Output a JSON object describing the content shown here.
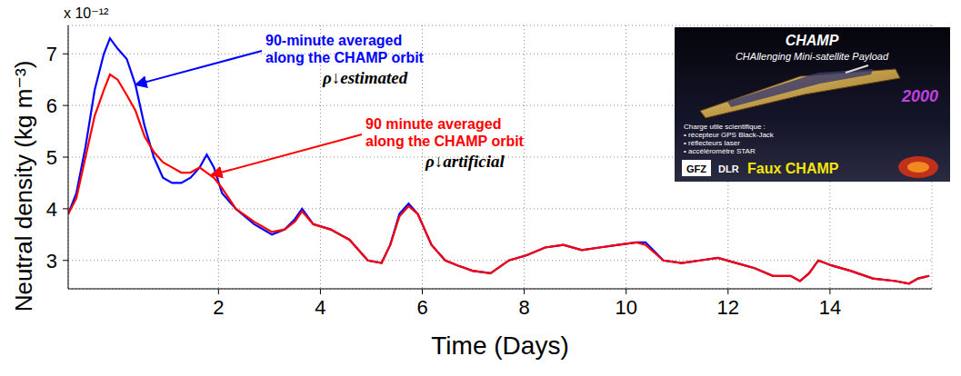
{
  "chart_data": {
    "type": "line",
    "xlabel": "Time (Days)",
    "ylabel": "Neutral density (kg m⁻³)",
    "y_multiplier": "x 10⁻¹²",
    "x": [
      -0.95,
      -0.79,
      -0.61,
      -0.43,
      -0.25,
      -0.13,
      0.02,
      0.2,
      0.37,
      0.55,
      0.73,
      0.91,
      1.09,
      1.27,
      1.45,
      1.63,
      1.77,
      1.91,
      2.07,
      2.34,
      2.7,
      3.05,
      3.3,
      3.5,
      3.64,
      3.86,
      4.2,
      4.57,
      4.93,
      5.2,
      5.37,
      5.55,
      5.73,
      5.91,
      6.18,
      6.45,
      6.7,
      6.98,
      7.34,
      7.7,
      8.05,
      8.41,
      8.77,
      9.13,
      9.48,
      9.84,
      10.2,
      10.38,
      10.73,
      11.09,
      11.45,
      11.8,
      12.16,
      12.52,
      12.88,
      13.23,
      13.41,
      13.59,
      13.77,
      14.04,
      14.4,
      14.84,
      15.29,
      15.55,
      15.73,
      15.95
    ],
    "series": [
      {
        "name": "ρ↓estimated",
        "color": "#0000ff",
        "values": [
          3.9,
          4.3,
          5.2,
          6.3,
          7.0,
          7.3,
          7.1,
          6.9,
          6.4,
          5.6,
          5.0,
          4.6,
          4.5,
          4.5,
          4.6,
          4.8,
          5.05,
          4.8,
          4.3,
          4.0,
          3.7,
          3.5,
          3.6,
          3.8,
          4.0,
          3.7,
          3.6,
          3.4,
          3.0,
          2.95,
          3.3,
          3.9,
          4.1,
          3.9,
          3.3,
          3.0,
          2.9,
          2.8,
          2.75,
          3.0,
          3.1,
          3.25,
          3.3,
          3.2,
          3.25,
          3.3,
          3.35,
          3.35,
          3.0,
          2.95,
          3.0,
          3.05,
          2.95,
          2.85,
          2.7,
          2.7,
          2.6,
          2.75,
          3.0,
          2.9,
          2.8,
          2.65,
          2.6,
          2.55,
          2.65,
          2.7
        ]
      },
      {
        "name": "ρ↓artificial",
        "color": "#ff0000",
        "values": [
          3.9,
          4.2,
          5.0,
          5.8,
          6.3,
          6.6,
          6.5,
          6.2,
          5.9,
          5.4,
          5.1,
          4.9,
          4.8,
          4.7,
          4.7,
          4.8,
          4.7,
          4.6,
          4.4,
          4.0,
          3.75,
          3.55,
          3.6,
          3.75,
          3.95,
          3.7,
          3.6,
          3.4,
          3.0,
          2.95,
          3.3,
          3.85,
          4.05,
          3.9,
          3.3,
          3.0,
          2.9,
          2.8,
          2.75,
          3.0,
          3.1,
          3.25,
          3.3,
          3.2,
          3.25,
          3.3,
          3.35,
          3.3,
          3.0,
          2.95,
          3.0,
          3.05,
          2.95,
          2.85,
          2.7,
          2.7,
          2.6,
          2.75,
          3.0,
          2.9,
          2.8,
          2.65,
          2.6,
          2.55,
          2.65,
          2.7
        ]
      }
    ],
    "xlim": [
      -0.95,
      16
    ],
    "xticks": [
      2,
      4,
      6,
      8,
      10,
      12,
      14
    ],
    "ylim": [
      2.45,
      7.55
    ],
    "yticks": [
      3,
      4,
      5,
      6,
      7
    ],
    "grid": true,
    "annotations": [
      {
        "lines": [
          "90-minute averaged",
          "along the CHAMP orbit"
        ],
        "color": "#0000ff"
      },
      {
        "lines": [
          "90 minute averaged",
          "along the CHAMP orbit"
        ],
        "color": "#ff0000"
      }
    ],
    "inset": {
      "title": "CHAMP",
      "subtitle": "CHAllenging Mini-satellite Payload",
      "year": "2000",
      "payload": [
        "Charge utile scientifique :",
        "• récepteur GPS Black-Jack",
        "• réflecteurs laser",
        "• accéléromètre STAR"
      ],
      "logos": [
        "GFZ",
        "DLR"
      ],
      "caption": "Faux CHAMP"
    }
  }
}
